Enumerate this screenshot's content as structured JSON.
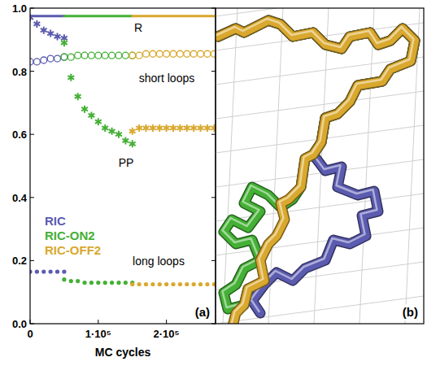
{
  "chart_data": {
    "type": "scatter",
    "x_label": "MC cycles",
    "panel_labels": [
      "(a)",
      "(b)"
    ],
    "annotations": [
      "R",
      "short loops",
      "PP",
      "long loops"
    ],
    "xlim": [
      0,
      272000
    ],
    "ylim": [
      0,
      1
    ],
    "xticks": [
      0,
      {
        "value": 100000,
        "label": "1·10⁵"
      },
      {
        "value": 200000,
        "label": "2·10⁵"
      }
    ],
    "yticks": [
      {
        "value": 0,
        "label": "0.0"
      },
      0.2,
      0.4,
      0.6,
      0.8,
      {
        "value": 1,
        "label": "1.0"
      }
    ],
    "legend": "left",
    "series": [
      {
        "name": "RIC",
        "color": "#5b5bb0",
        "type": "line",
        "line_style": "solid",
        "x": [
          0,
          10000,
          20000,
          30000,
          40000,
          50000
        ],
        "values": [
          0.975,
          0.975,
          0.975,
          0.975,
          0.975,
          0.975
        ]
      },
      {
        "name": "RIC",
        "color": "#5b5bb0",
        "marker": "star",
        "x": [
          0,
          10000,
          20000,
          30000,
          40000,
          50000
        ],
        "values": [
          0.97,
          0.95,
          0.93,
          0.92,
          0.91,
          0.905
        ]
      },
      {
        "name": "RIC",
        "color": "#5b5bb0",
        "marker": "circle-open",
        "x": [
          0,
          10000,
          20000,
          30000,
          40000,
          50000
        ],
        "values": [
          0.83,
          0.83,
          0.835,
          0.84,
          0.84,
          0.845
        ]
      },
      {
        "name": "RIC",
        "color": "#5b5bb0",
        "marker": "circle",
        "x": [
          0,
          10000,
          20000,
          30000,
          40000,
          50000
        ],
        "values": [
          0.165,
          0.165,
          0.165,
          0.165,
          0.165,
          0.165
        ]
      },
      {
        "name": "RIC-ON2",
        "color": "#44b035",
        "type": "line",
        "line_style": "solid",
        "x": [
          50000,
          60000,
          70000,
          80000,
          90000,
          100000,
          110000,
          120000,
          130000,
          140000,
          150000
        ],
        "values": [
          0.975,
          0.975,
          0.975,
          0.975,
          0.975,
          0.975,
          0.975,
          0.975,
          0.975,
          0.975,
          0.975
        ]
      },
      {
        "name": "RIC-ON2",
        "color": "#44b035",
        "marker": "star",
        "x": [
          50000,
          60000,
          70000,
          80000,
          90000,
          100000,
          110000,
          120000,
          130000,
          140000,
          150000
        ],
        "values": [
          0.89,
          0.78,
          0.72,
          0.68,
          0.66,
          0.64,
          0.62,
          0.61,
          0.6,
          0.58,
          0.57
        ]
      },
      {
        "name": "RIC-ON2",
        "color": "#44b035",
        "marker": "circle-open",
        "x": [
          50000,
          60000,
          70000,
          80000,
          90000,
          100000,
          110000,
          120000,
          130000,
          140000,
          150000
        ],
        "values": [
          0.845,
          0.845,
          0.85,
          0.85,
          0.85,
          0.85,
          0.85,
          0.85,
          0.85,
          0.85,
          0.85
        ]
      },
      {
        "name": "RIC-ON2",
        "color": "#44b035",
        "marker": "circle",
        "x": [
          50000,
          60000,
          70000,
          80000,
          90000,
          100000,
          110000,
          120000,
          130000,
          140000,
          150000
        ],
        "values": [
          0.14,
          0.135,
          0.135,
          0.13,
          0.13,
          0.13,
          0.13,
          0.13,
          0.13,
          0.13,
          0.13
        ]
      },
      {
        "name": "RIC-OFF2",
        "color": "#d9a82e",
        "type": "line",
        "line_style": "solid",
        "x": [
          150000,
          160000,
          170000,
          180000,
          190000,
          200000,
          210000,
          220000,
          230000,
          240000,
          250000,
          260000,
          270000
        ],
        "values": [
          0.975,
          0.975,
          0.975,
          0.975,
          0.975,
          0.975,
          0.975,
          0.975,
          0.975,
          0.975,
          0.975,
          0.975,
          0.975
        ]
      },
      {
        "name": "RIC-OFF2",
        "color": "#d9a82e",
        "marker": "star",
        "x": [
          150000,
          160000,
          170000,
          180000,
          190000,
          200000,
          210000,
          220000,
          230000,
          240000,
          250000,
          260000,
          270000
        ],
        "values": [
          0.61,
          0.62,
          0.62,
          0.62,
          0.62,
          0.62,
          0.62,
          0.62,
          0.62,
          0.62,
          0.62,
          0.62,
          0.62
        ]
      },
      {
        "name": "RIC-OFF2",
        "color": "#d9a82e",
        "marker": "circle-open",
        "x": [
          150000,
          160000,
          170000,
          180000,
          190000,
          200000,
          210000,
          220000,
          230000,
          240000,
          250000,
          260000,
          270000
        ],
        "values": [
          0.85,
          0.85,
          0.855,
          0.855,
          0.855,
          0.855,
          0.855,
          0.855,
          0.855,
          0.855,
          0.855,
          0.855,
          0.855
        ]
      },
      {
        "name": "RIC-OFF2",
        "color": "#d9a82e",
        "marker": "circle",
        "x": [
          150000,
          160000,
          170000,
          180000,
          190000,
          200000,
          210000,
          220000,
          230000,
          240000,
          250000,
          260000,
          270000
        ],
        "values": [
          0.125,
          0.125,
          0.125,
          0.125,
          0.125,
          0.125,
          0.125,
          0.125,
          0.125,
          0.125,
          0.125,
          0.125,
          0.125
        ]
      }
    ]
  }
}
